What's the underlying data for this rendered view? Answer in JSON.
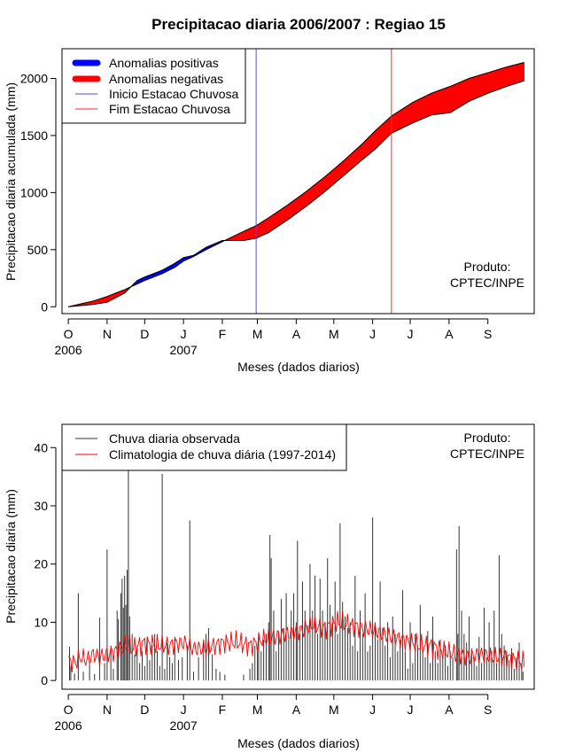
{
  "title": "Precipitacao diaria 2006/2007 : Regiao 15",
  "colors": {
    "positive": "#0000ff",
    "negative": "#ff0000",
    "onset": "#4b4bff",
    "end": "#ff2a2a",
    "observed": "#333333",
    "climatology": "#ff0000"
  },
  "chart_data": [
    {
      "type": "area",
      "name": "accumulated",
      "title": "Precipitacao diaria 2006/2007 : Regiao 15",
      "xlabel": "Meses (dados diarios)",
      "ylabel": "Precipitacao diaria acumulada (mm)",
      "ylim": [
        -60,
        2260
      ],
      "yticks": [
        0,
        500,
        1000,
        1500,
        2000
      ],
      "xlim": [
        -5,
        372
      ],
      "month_ticks": [
        {
          "day": 0,
          "label": "O"
        },
        {
          "day": 31,
          "label": "N"
        },
        {
          "day": 61,
          "label": "D"
        },
        {
          "day": 92,
          "label": "J"
        },
        {
          "day": 123,
          "label": "F"
        },
        {
          "day": 151,
          "label": "M"
        },
        {
          "day": 182,
          "label": "A"
        },
        {
          "day": 212,
          "label": "M"
        },
        {
          "day": 243,
          "label": "J"
        },
        {
          "day": 273,
          "label": "J"
        },
        {
          "day": 304,
          "label": "A"
        },
        {
          "day": 335,
          "label": "S"
        }
      ],
      "year_labels": [
        {
          "day": 0,
          "label": "2006"
        },
        {
          "day": 92,
          "label": "2007"
        }
      ],
      "onset_day": 150,
      "end_day": 258,
      "observed_accumulated": {
        "days": [
          0,
          10,
          20,
          31,
          45,
          55,
          61,
          75,
          85,
          92,
          100,
          110,
          123,
          140,
          150,
          160,
          175,
          190,
          205,
          220,
          235,
          245,
          258,
          275,
          290,
          305,
          320,
          335,
          350,
          364
        ],
        "values": [
          0,
          10,
          20,
          40,
          120,
          230,
          260,
          320,
          380,
          430,
          450,
          520,
          580,
          580,
          600,
          650,
          760,
          880,
          1010,
          1150,
          1290,
          1380,
          1520,
          1610,
          1680,
          1700,
          1800,
          1870,
          1930,
          1980
        ]
      },
      "climatology_accumulated": {
        "days": [
          0,
          10,
          20,
          31,
          45,
          55,
          61,
          75,
          85,
          92,
          100,
          110,
          123,
          140,
          150,
          160,
          175,
          190,
          205,
          220,
          235,
          245,
          258,
          275,
          290,
          305,
          320,
          335,
          350,
          364
        ],
        "values": [
          0,
          25,
          50,
          90,
          150,
          200,
          230,
          290,
          345,
          400,
          440,
          500,
          570,
          660,
          710,
          780,
          890,
          1010,
          1140,
          1280,
          1430,
          1540,
          1670,
          1790,
          1870,
          1930,
          2000,
          2050,
          2100,
          2140
        ]
      },
      "legend": [
        {
          "label": "Anomalias positivas",
          "style": "thick",
          "color": "positive"
        },
        {
          "label": "Anomalias negativas",
          "style": "thick",
          "color": "negative"
        },
        {
          "label": "Inicio Estacao Chuvosa",
          "style": "thin",
          "color": "onset"
        },
        {
          "label": "Fim Estacao Chuvosa",
          "style": "thin",
          "color": "end"
        }
      ],
      "product_label": [
        "Produto:",
        "CPTEC/INPE"
      ]
    },
    {
      "type": "bar",
      "name": "daily",
      "xlabel": "Meses (dados diarios)",
      "ylabel": "Precipitacao diaria (mm)",
      "ylim": [
        -1.5,
        44
      ],
      "yticks": [
        0,
        10,
        20,
        30,
        40
      ],
      "xlim": [
        -5,
        372
      ],
      "month_ticks": [
        {
          "day": 0,
          "label": "O"
        },
        {
          "day": 31,
          "label": "N"
        },
        {
          "day": 61,
          "label": "D"
        },
        {
          "day": 92,
          "label": "J"
        },
        {
          "day": 123,
          "label": "F"
        },
        {
          "day": 151,
          "label": "M"
        },
        {
          "day": 182,
          "label": "A"
        },
        {
          "day": 212,
          "label": "M"
        },
        {
          "day": 243,
          "label": "J"
        },
        {
          "day": 273,
          "label": "J"
        },
        {
          "day": 304,
          "label": "A"
        },
        {
          "day": 335,
          "label": "S"
        }
      ],
      "year_labels": [
        {
          "day": 0,
          "label": "2006"
        },
        {
          "day": 92,
          "label": "2007"
        }
      ],
      "observed_daily": [
        [
          1,
          5.8
        ],
        [
          2,
          2.5
        ],
        [
          5,
          1.2
        ],
        [
          8,
          15
        ],
        [
          12,
          1.5
        ],
        [
          17,
          2.8
        ],
        [
          21,
          1.1
        ],
        [
          25,
          10.8
        ],
        [
          29,
          3.0
        ],
        [
          31,
          22.5
        ],
        [
          34,
          6.0
        ],
        [
          36,
          2.0
        ],
        [
          39,
          12.0
        ],
        [
          40,
          10.5
        ],
        [
          42,
          15.0
        ],
        [
          43,
          17.5
        ],
        [
          44,
          12.5
        ],
        [
          45,
          18.0
        ],
        [
          46,
          13.0
        ],
        [
          47,
          19.0
        ],
        [
          48,
          36.5
        ],
        [
          49,
          11.0
        ],
        [
          51,
          8.0
        ],
        [
          53,
          4.5
        ],
        [
          55,
          6.0
        ],
        [
          57,
          3.0
        ],
        [
          59,
          5.0
        ],
        [
          61,
          2.5
        ],
        [
          63,
          7.0
        ],
        [
          65,
          3.5
        ],
        [
          67,
          6.0
        ],
        [
          69,
          8.0
        ],
        [
          71,
          5.0
        ],
        [
          73,
          2.5
        ],
        [
          75,
          35.5
        ],
        [
          77,
          2.0
        ],
        [
          79,
          6.5
        ],
        [
          81,
          4.0
        ],
        [
          83,
          3.0
        ],
        [
          85,
          7.5
        ],
        [
          88,
          3.5
        ],
        [
          91,
          4.0
        ],
        [
          95,
          6.0
        ],
        [
          97,
          27.5
        ],
        [
          100,
          1.5
        ],
        [
          104,
          4.0
        ],
        [
          108,
          6.5
        ],
        [
          110,
          8.0
        ],
        [
          112,
          9.0
        ],
        [
          115,
          4.5
        ],
        [
          118,
          2.0
        ],
        [
          121,
          1.5
        ],
        [
          125,
          1.0
        ],
        [
          140,
          1.0
        ],
        [
          145,
          2.0
        ],
        [
          147,
          3.0
        ],
        [
          149,
          6.0
        ],
        [
          151,
          5.0
        ],
        [
          152,
          7.5
        ],
        [
          154,
          5.0
        ],
        [
          156,
          7.0
        ],
        [
          158,
          8.0
        ],
        [
          160,
          10.0
        ],
        [
          161,
          25.0
        ],
        [
          162,
          21.0
        ],
        [
          164,
          12.0
        ],
        [
          166,
          5.0
        ],
        [
          168,
          8.5
        ],
        [
          170,
          14.0
        ],
        [
          172,
          9.0
        ],
        [
          174,
          15.0
        ],
        [
          176,
          7.0
        ],
        [
          178,
          12.0
        ],
        [
          180,
          15.0
        ],
        [
          182,
          10.0
        ],
        [
          183,
          24.0
        ],
        [
          185,
          8.0
        ],
        [
          187,
          17.0
        ],
        [
          189,
          12.0
        ],
        [
          191,
          9.5
        ],
        [
          193,
          20.0
        ],
        [
          195,
          12.0
        ],
        [
          197,
          18.0
        ],
        [
          199,
          8.0
        ],
        [
          201,
          17.5
        ],
        [
          203,
          12.0
        ],
        [
          205,
          10.0
        ],
        [
          207,
          21.0
        ],
        [
          209,
          13.0
        ],
        [
          211,
          10.0
        ],
        [
          213,
          17.0
        ],
        [
          215,
          8.0
        ],
        [
          217,
          27.0
        ],
        [
          219,
          13.5
        ],
        [
          221,
          11.0
        ],
        [
          223,
          9.0
        ],
        [
          225,
          10.0
        ],
        [
          227,
          6.0
        ],
        [
          229,
          18.0
        ],
        [
          231,
          5.0
        ],
        [
          233,
          12.0
        ],
        [
          235,
          8.0
        ],
        [
          237,
          15.0
        ],
        [
          239,
          5.0
        ],
        [
          241,
          6.0
        ],
        [
          243,
          28.0
        ],
        [
          245,
          10.0
        ],
        [
          247,
          7.0
        ],
        [
          249,
          17.0
        ],
        [
          251,
          9.0
        ],
        [
          253,
          6.0
        ],
        [
          255,
          10.0
        ],
        [
          257,
          4.0
        ],
        [
          259,
          11.0
        ],
        [
          261,
          8.0
        ],
        [
          263,
          5.0
        ],
        [
          265,
          7.0
        ],
        [
          267,
          15.5
        ],
        [
          269,
          5.0
        ],
        [
          271,
          2.0
        ],
        [
          273,
          10.0
        ],
        [
          275,
          3.0
        ],
        [
          277,
          8.0
        ],
        [
          279,
          6.0
        ],
        [
          281,
          13.0
        ],
        [
          283,
          5.0
        ],
        [
          285,
          4.0
        ],
        [
          287,
          8.5
        ],
        [
          289,
          3.0
        ],
        [
          291,
          11.0
        ],
        [
          293,
          5.0
        ],
        [
          295,
          3.0
        ],
        [
          297,
          7.0
        ],
        [
          299,
          4.0
        ],
        [
          301,
          6.0
        ],
        [
          303,
          2.5
        ],
        [
          305,
          5.0
        ],
        [
          307,
          4.0
        ],
        [
          310,
          22.5
        ],
        [
          311,
          8.0
        ],
        [
          312,
          26.5
        ],
        [
          314,
          12.0
        ],
        [
          316,
          8.0
        ],
        [
          318,
          6.5
        ],
        [
          320,
          11.0
        ],
        [
          322,
          5.5
        ],
        [
          324,
          4.0
        ],
        [
          326,
          2.5
        ],
        [
          328,
          7.5
        ],
        [
          330,
          3.0
        ],
        [
          332,
          12.5
        ],
        [
          334,
          4.0
        ],
        [
          336,
          10.0
        ],
        [
          338,
          5.0
        ],
        [
          340,
          12.0
        ],
        [
          342,
          3.0
        ],
        [
          344,
          21.5
        ],
        [
          346,
          8.0
        ],
        [
          348,
          6.0
        ],
        [
          350,
          5.0
        ],
        [
          352,
          3.5
        ],
        [
          354,
          5.5
        ],
        [
          356,
          2.0
        ],
        [
          358,
          4.0
        ],
        [
          360,
          6.5
        ],
        [
          362,
          3.0
        ],
        [
          363,
          1.5
        ]
      ],
      "climatology_daily": {
        "days": [
          0,
          5,
          10,
          15,
          20,
          25,
          31,
          38,
          45,
          52,
          61,
          70,
          80,
          92,
          100,
          110,
          123,
          135,
          145,
          155,
          165,
          175,
          185,
          195,
          205,
          215,
          225,
          235,
          245,
          258,
          268,
          280,
          290,
          300,
          310,
          320,
          330,
          340,
          350,
          364
        ],
        "values": [
          3.5,
          3.0,
          4.0,
          3.5,
          4.5,
          4.0,
          4.5,
          5.0,
          6.0,
          5.5,
          6.5,
          6.0,
          6.0,
          6.5,
          5.5,
          5.5,
          6.5,
          6.5,
          6.0,
          7.0,
          7.5,
          8.0,
          8.5,
          9.5,
          9.0,
          10.0,
          9.5,
          9.0,
          8.5,
          7.5,
          7.0,
          6.0,
          6.0,
          5.0,
          4.5,
          4.0,
          4.5,
          4.0,
          4.0,
          3.0
        ]
      },
      "legend": [
        {
          "label": "Chuva diaria observada",
          "style": "thin",
          "color": "observed"
        },
        {
          "label": "Climatologia de chuva diária (1997-2014)",
          "style": "thin",
          "color": "climatology"
        }
      ],
      "product_label": [
        "Produto:",
        "CPTEC/INPE"
      ]
    }
  ]
}
